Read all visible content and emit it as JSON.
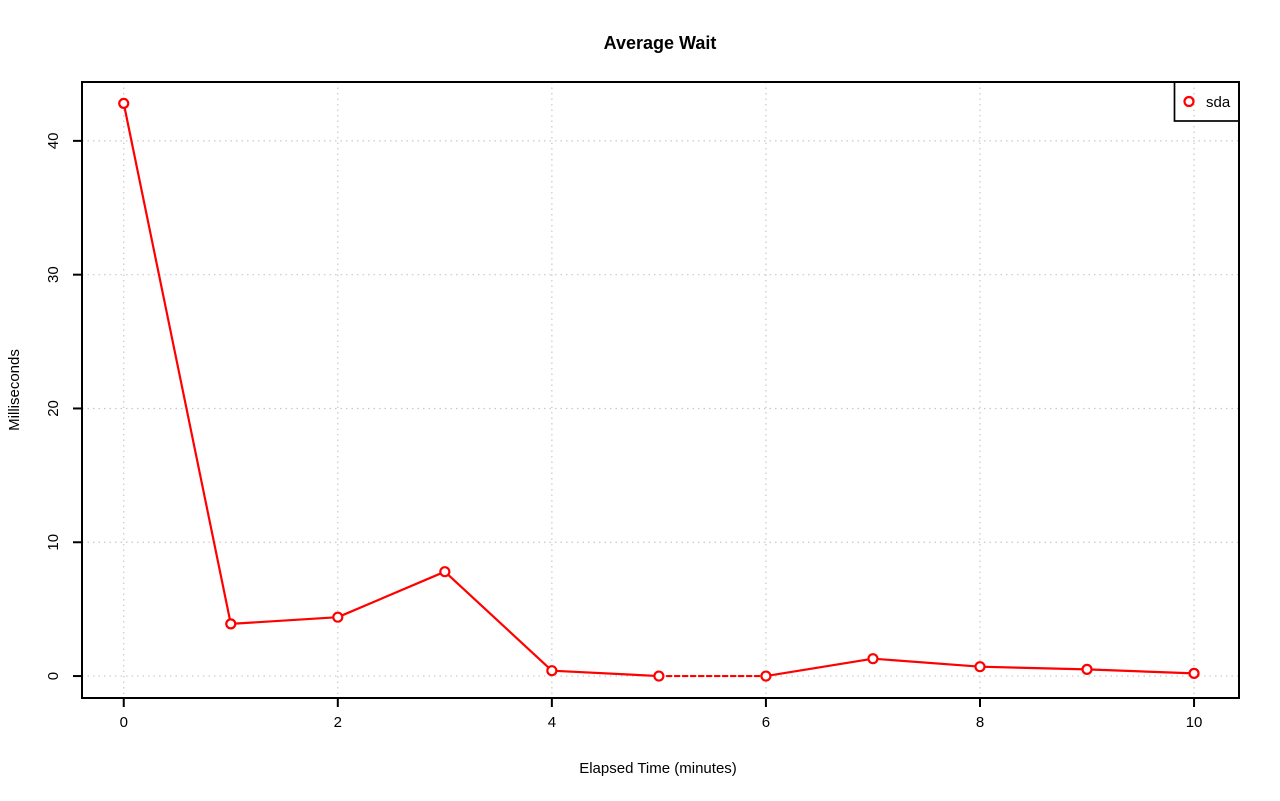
{
  "chart_data": {
    "type": "line",
    "title": "Average Wait",
    "xlabel": "Elapsed Time (minutes)",
    "ylabel": "Milliseconds",
    "x": [
      0,
      1,
      2,
      3,
      4,
      5,
      6,
      7,
      8,
      9,
      10
    ],
    "series": [
      {
        "name": "sda",
        "color": "#ff0000",
        "marker": "open-circle",
        "values": [
          42.8,
          3.9,
          4.4,
          7.8,
          0.4,
          0.0,
          0.0,
          1.3,
          0.7,
          0.5,
          0.2
        ]
      }
    ],
    "segments": [
      {
        "from": 0,
        "to": 5,
        "style": "solid"
      },
      {
        "from": 5,
        "to": 6,
        "style": "dashed"
      },
      {
        "from": 6,
        "to": 10,
        "style": "solid"
      }
    ],
    "xticks": [
      0,
      2,
      4,
      6,
      8,
      10
    ],
    "yticks": [
      0,
      10,
      20,
      30,
      40
    ],
    "xlim": [
      -0.39,
      10.42
    ],
    "ylim": [
      -1.64,
      44.4
    ],
    "grid": "dotted",
    "grid_color": "#c8c8c8",
    "axis_color": "#000000",
    "background": "#ffffff",
    "legend": {
      "position": "top-right",
      "entries": [
        {
          "label": "sda",
          "color": "#ff0000"
        }
      ]
    }
  }
}
